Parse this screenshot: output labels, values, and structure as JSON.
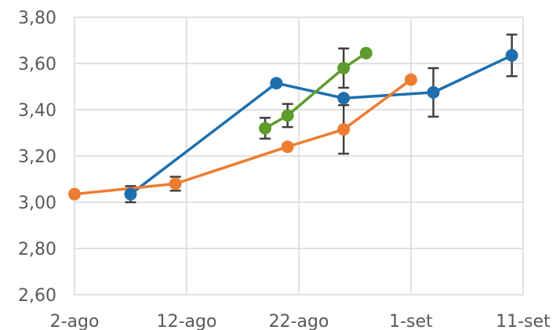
{
  "chart_data": {
    "type": "line",
    "title": "",
    "xlabel": "",
    "ylabel": "",
    "ylim": [
      2.6,
      3.8
    ],
    "yticks": [
      2.6,
      2.8,
      3.0,
      3.2,
      3.4,
      3.6,
      3.8
    ],
    "ytick_labels": [
      "2,60",
      "2,80",
      "3,00",
      "3,20",
      "3,40",
      "3,60",
      "3,80"
    ],
    "xlim": [
      "2-ago",
      "11-set"
    ],
    "xticks": [
      "2-ago",
      "12-ago",
      "22-ago",
      "1-set",
      "11-set"
    ],
    "xtick_labels": [
      "2-ago",
      "12-ago",
      "22-ago",
      "1-set",
      "11-set"
    ],
    "grid": true,
    "legend": "none",
    "series": [
      {
        "color": "#1f6fae",
        "points": [
          {
            "x": "7-ago",
            "y": 3.035,
            "err": 0.035
          },
          {
            "x": "20-ago",
            "y": 3.515
          },
          {
            "x": "26-ago",
            "y": 3.45
          },
          {
            "x": "3-set",
            "y": 3.475,
            "err": 0.105
          },
          {
            "x": "10-set",
            "y": 3.635,
            "err": 0.09
          }
        ]
      },
      {
        "color": "#ed7d31",
        "points": [
          {
            "x": "2-ago",
            "y": 3.035
          },
          {
            "x": "11-ago",
            "y": 3.08,
            "err": 0.03
          },
          {
            "x": "21-ago",
            "y": 3.24
          },
          {
            "x": "26-ago",
            "y": 3.315,
            "err": 0.105
          },
          {
            "x": "1-set",
            "y": 3.53
          }
        ]
      },
      {
        "color": "#5e9c2e",
        "points": [
          {
            "x": "19-ago",
            "y": 3.32,
            "err": 0.045
          },
          {
            "x": "21-ago",
            "y": 3.375,
            "err": 0.05
          },
          {
            "x": "26-ago",
            "y": 3.58,
            "err": 0.085
          },
          {
            "x": "28-ago",
            "y": 3.645
          }
        ]
      }
    ]
  }
}
